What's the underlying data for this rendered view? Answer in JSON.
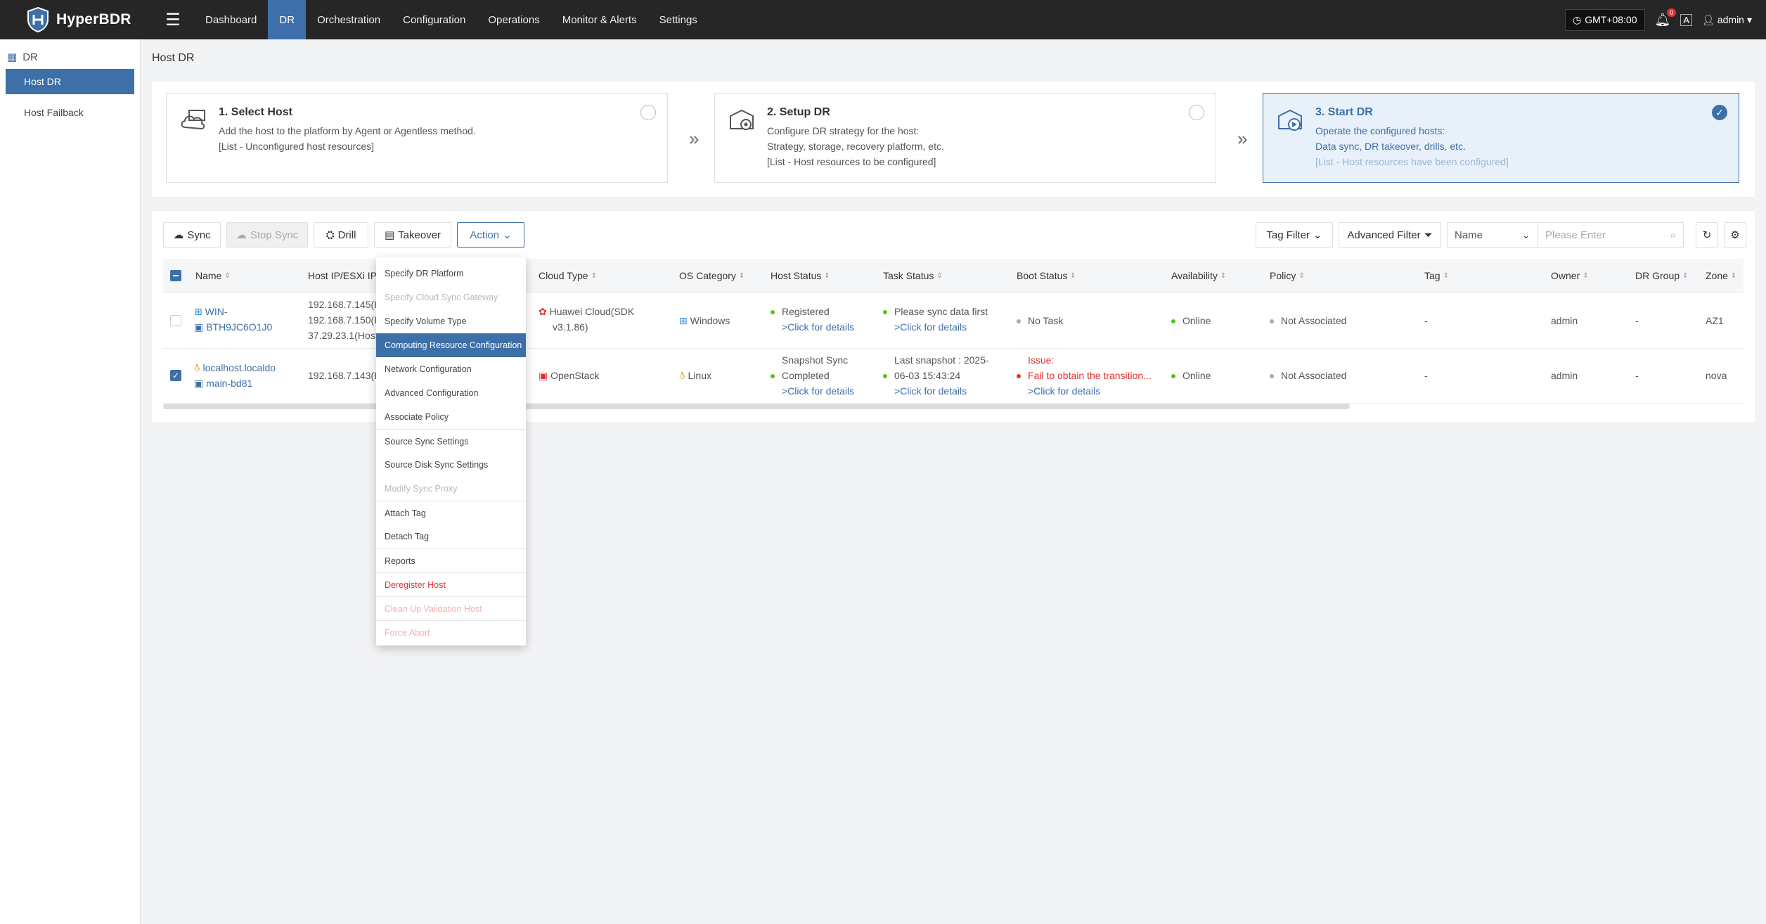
{
  "app": {
    "name": "HyperBDR"
  },
  "nav": [
    "Dashboard",
    "DR",
    "Orchestration",
    "Configuration",
    "Operations",
    "Monitor & Alerts",
    "Settings"
  ],
  "topbar": {
    "timezone": "GMT+08:00",
    "notification_count": "0",
    "user": "admin"
  },
  "sidebar": {
    "section": "DR",
    "items": [
      "Host DR",
      "Host Failback"
    ]
  },
  "page_title": "Host DR",
  "steps": [
    {
      "title": "1. Select Host",
      "lines": [
        "Add the host to the platform by Agent or Agentless method.",
        "[List - Unconfigured host resources]"
      ]
    },
    {
      "title": "2. Setup DR",
      "lines": [
        "Configure DR strategy for the host:",
        "Strategy, storage, recovery platform, etc.",
        "[List - Host resources to be configured]"
      ]
    },
    {
      "title": "3. Start DR",
      "lines": [
        "Operate the configured hosts:",
        "Data sync, DR takeover, drills, etc.",
        "[List - Host resources have been configured]"
      ]
    }
  ],
  "toolbar": {
    "sync": "Sync",
    "stop_sync": "Stop Sync",
    "drill": "Drill",
    "takeover": "Takeover",
    "action": "Action",
    "tag_filter": "Tag Filter",
    "advanced_filter": "Advanced Filter",
    "field_select": "Name",
    "search_placeholder": "Please Enter"
  },
  "columns": [
    "Name",
    "Host IP/ESXi IP",
    "Cloud Type",
    "OS Category",
    "Host Status",
    "Task Status",
    "Boot Status",
    "Availability",
    "Policy",
    "Tag",
    "Owner",
    "DR Group",
    "Zone"
  ],
  "rows": [
    {
      "name": [
        "WIN-",
        "BTH9JC6O1J0"
      ],
      "ip": [
        "192.168.7.145(H",
        "192.168.7.150(H",
        "37.29.23.1(Host"
      ],
      "cloud": [
        "Huawei Cloud(SDK",
        "v3.1.86)"
      ],
      "os": "Windows",
      "host_status": [
        "Registered",
        ">Click for details"
      ],
      "task_status": [
        "Please sync data first",
        ">Click for details"
      ],
      "boot_status": "No Task",
      "availability": "Online",
      "policy": "Not Associated",
      "tag": "-",
      "owner": "admin",
      "dr_group": "-",
      "zone": "AZ1"
    },
    {
      "name": [
        "localhost.localdo",
        "main-bd81"
      ],
      "ip": [
        "192.168.7.143(H"
      ],
      "cloud": [
        "OpenStack"
      ],
      "os": "Linux",
      "host_status": [
        "Snapshot Sync",
        "Completed",
        ">Click for details"
      ],
      "task_status": [
        "Last snapshot : 2025-",
        "06-03 15:43:24",
        ">Click for details"
      ],
      "boot_status": [
        "Issue:",
        "Fail to obtain the transition...",
        ">Click for details"
      ],
      "availability": "Online",
      "policy": "Not Associated",
      "tag": "-",
      "owner": "admin",
      "dr_group": "-",
      "zone": "nova"
    }
  ],
  "action_menu": [
    "Specify DR Platform",
    "Specify Cloud Sync Gateway",
    "Specify Volume Type",
    "Computing Resource Configuration",
    "Network Configuration",
    "Advanced Configuration",
    "Associate Policy",
    "Source Sync Settings",
    "Source Disk Sync Settings",
    "Modify Sync Proxy",
    "Attach Tag",
    "Detach Tag",
    "Reports",
    "Deregister Host",
    "Clean Up Validation Host",
    "Force Abort"
  ],
  "colors": {
    "brand": "#3d6fa8",
    "topbar": "#262626",
    "danger": "#e03131",
    "online": "#52c41a"
  }
}
